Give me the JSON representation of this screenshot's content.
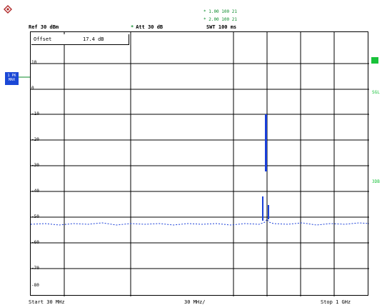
{
  "header": {
    "ref_level": "Ref  30 dBm",
    "att_prefix": "*",
    "att": "Att  30 dB",
    "swt": "SWT 100 ms"
  },
  "marker_lines": [
    "* 1.00  100  21",
    "* 2.00  100  21"
  ],
  "marker_box": {
    "label": "Offset",
    "value": "17.4 dB"
  },
  "left_badge": {
    "line1": "1 PK",
    "line2": "MAX"
  },
  "right_labels": {
    "box": "A",
    "mid": "SGL",
    "low": "3DB"
  },
  "y_ticks": [
    "10",
    "0",
    "-10",
    "-20",
    "-30",
    "-40",
    "-50",
    "-60",
    "-70",
    "-80"
  ],
  "footer": {
    "start": "Start  30 MHz",
    "center": "30 MHz/",
    "stop": "Stop  1 GHz"
  },
  "colors": {
    "trace": "#1a3fd8",
    "grid": "#000000",
    "marker": "#0a8a2a"
  }
}
